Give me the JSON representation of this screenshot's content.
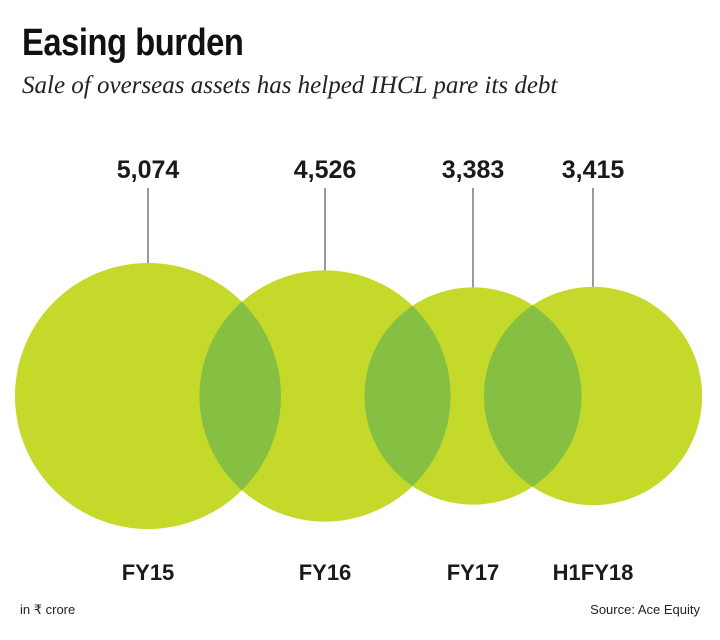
{
  "header": {
    "title": "Easing burden",
    "subtitle": "Sale of overseas assets has helped IHCL pare its debt"
  },
  "footer": {
    "unit_note": "in ₹ crore",
    "source": "Source: Ace Equity"
  },
  "colors": {
    "circle_fill": "#c4d92a",
    "overlap_fill": "#86c043",
    "leader_line": "#555555",
    "text": "#1a1a1a"
  },
  "chart_data": {
    "type": "bubble",
    "categories": [
      "FY15",
      "FY16",
      "FY17",
      "H1FY18"
    ],
    "values": [
      5074,
      4526,
      3383,
      3415
    ],
    "value_labels": [
      "5,074",
      "4,526",
      "3,383",
      "3,415"
    ],
    "title": "Easing burden",
    "subtitle": "Sale of overseas assets has helped IHCL pare its debt",
    "unit": "in ₹ crore",
    "source": "Source: Ace Equity",
    "grid": false,
    "legend": "none"
  }
}
